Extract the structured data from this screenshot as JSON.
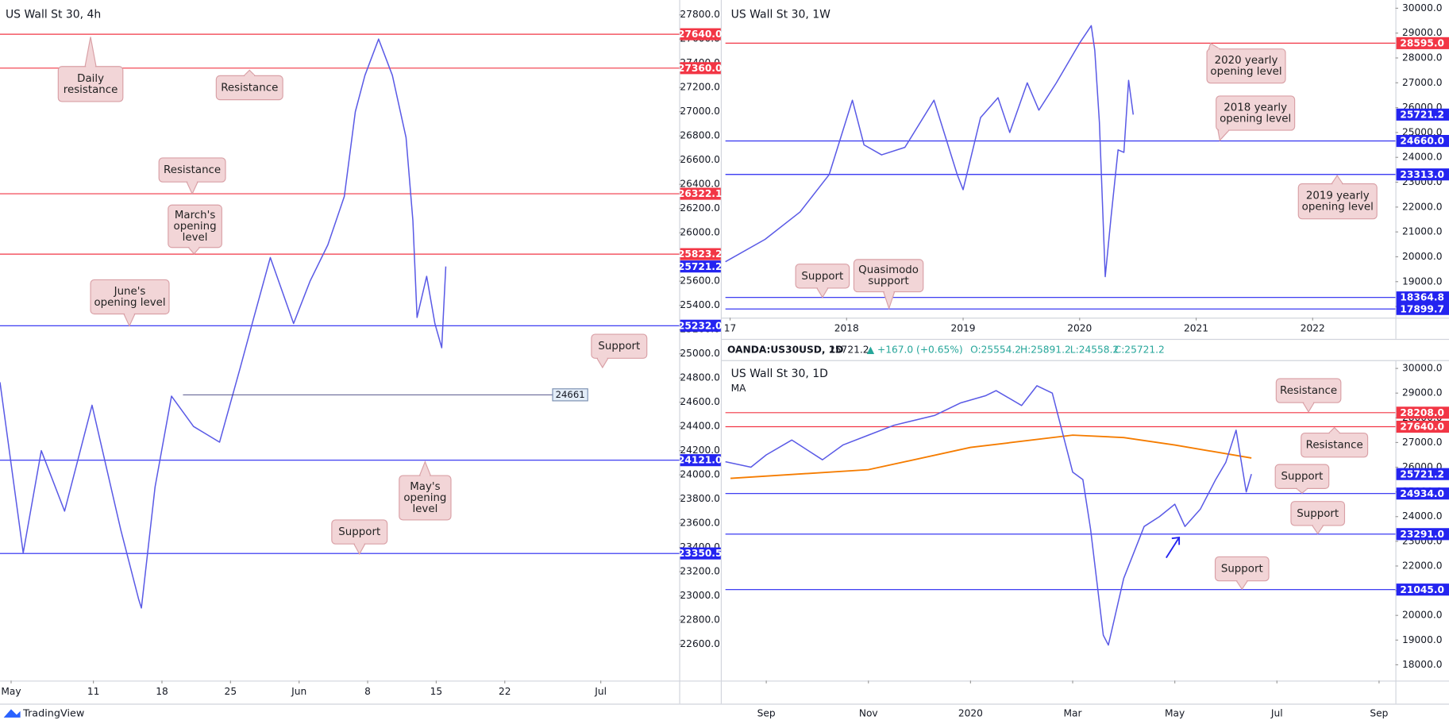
{
  "brand": "TradingView",
  "chart_data": [
    {
      "type": "line",
      "title": "US Wall St 30, 4h",
      "color": "#5a5ae6",
      "x": [
        -0.81,
        0.88,
        2.2,
        3.9,
        5.9,
        8.0,
        9.3,
        9.5,
        10.5,
        11.7,
        13.3,
        15.2,
        16.7,
        17.7,
        18.9,
        20.6,
        21.8,
        23.1,
        24.3,
        25.1,
        25.8,
        26.8,
        27.8,
        28.8,
        29.3,
        29.6,
        30.3,
        30.9,
        31.4,
        31.7
      ],
      "values": [
        24765,
        23355,
        24200,
        23700,
        24575,
        23545,
        22973,
        22900,
        23900,
        24650,
        24400,
        24270,
        24880,
        25300,
        25795,
        25250,
        25600,
        25900,
        26300,
        27000,
        27300,
        27600,
        27300,
        26786,
        26100,
        25300,
        25640,
        25250,
        25050,
        25721.2
      ],
      "xlim": [
        -0.81,
        48.72
      ],
      "xticks": [
        {
          "value": 0,
          "label": "May"
        },
        {
          "value": 6,
          "label": "11"
        },
        {
          "value": 11,
          "label": "18"
        },
        {
          "value": 16,
          "label": "25"
        },
        {
          "value": 21,
          "label": "Jun"
        },
        {
          "value": 26,
          "label": "8"
        },
        {
          "value": 31,
          "label": "15"
        },
        {
          "value": 36,
          "label": "22"
        },
        {
          "value": 43,
          "label": "Jul"
        }
      ],
      "ylim": [
        22300,
        27900
      ],
      "yticks": [
        {
          "value": 27800,
          "label": "27800.0"
        },
        {
          "value": 27600,
          "label": "27600.0"
        },
        {
          "value": 27400,
          "label": "27400.0"
        },
        {
          "value": 27200,
          "label": "27200.0"
        },
        {
          "value": 27000,
          "label": "27000.0"
        },
        {
          "value": 26800,
          "label": "26800.0"
        },
        {
          "value": 26600,
          "label": "26600.0"
        },
        {
          "value": 26400,
          "label": "26400.0"
        },
        {
          "value": 26200,
          "label": "26200.0"
        },
        {
          "value": 26000,
          "label": "26000.0"
        },
        {
          "value": 25800,
          "label": "25800.0"
        },
        {
          "value": 25600,
          "label": "25600.0"
        },
        {
          "value": 25400,
          "label": "25400.0"
        },
        {
          "value": 25200,
          "label": "25200.0"
        },
        {
          "value": 25000,
          "label": "25000.0"
        },
        {
          "value": 24800,
          "label": "24800.0"
        },
        {
          "value": 24600,
          "label": "24600.0"
        },
        {
          "value": 24400,
          "label": "24400.0"
        },
        {
          "value": 24200,
          "label": "24200.0"
        },
        {
          "value": 24000,
          "label": "24000.0"
        },
        {
          "value": 23800,
          "label": "23800.0"
        },
        {
          "value": 23600,
          "label": "23600.0"
        },
        {
          "value": 23400,
          "label": "23400.0"
        },
        {
          "value": 23200,
          "label": "23200.0"
        },
        {
          "value": 23000,
          "label": "23000.0"
        },
        {
          "value": 22800,
          "label": "22800.0"
        },
        {
          "value": 22600,
          "label": "22600.0"
        }
      ],
      "levels": [
        {
          "value": 27640,
          "label": "27640.0",
          "color": "#f23645"
        },
        {
          "value": 27360,
          "label": "27360.0",
          "color": "#f23645"
        },
        {
          "value": 26322.1,
          "color": "#f23645"
        },
        {
          "value": 25823.2,
          "color": "#f23645"
        },
        {
          "value": 25721.2,
          "color": "#2424f0",
          "line": false
        },
        {
          "value": 25232,
          "label": "25232.0",
          "color": "#2424f0"
        },
        {
          "value": 24121,
          "label": "24121.0",
          "color": "#2424f0"
        },
        {
          "value": 23350.5,
          "color": "#2424f0"
        }
      ],
      "marker": 24661,
      "annotations": [
        {
          "lines": [
            "Daily",
            "resistance"
          ]
        },
        {
          "lines": [
            "Resistance"
          ]
        },
        {
          "lines": [
            "Resistance"
          ]
        },
        {
          "lines": [
            "March's",
            "opening",
            "level"
          ]
        },
        {
          "lines": [
            "June's",
            "opening level"
          ]
        },
        {
          "lines": [
            "Support"
          ]
        },
        {
          "lines": [
            "May's",
            "opening",
            "level"
          ]
        },
        {
          "lines": [
            "Support"
          ]
        }
      ]
    },
    {
      "type": "line",
      "title": "US Wall St 30, 1W",
      "color": "#5a5ae6",
      "x": [
        2016.96,
        2017.3,
        2017.6,
        2017.85,
        2018.05,
        2018.15,
        2018.3,
        2018.5,
        2018.75,
        2018.95,
        2019.0,
        2019.15,
        2019.3,
        2019.4,
        2019.55,
        2019.65,
        2019.8,
        2020.0,
        2020.1,
        2020.13,
        2020.17,
        2020.22,
        2020.27,
        2020.33,
        2020.38,
        2020.42,
        2020.46
      ],
      "values": [
        19800,
        20700,
        21800,
        23300,
        26300,
        24500,
        24100,
        24400,
        26300,
        23300,
        22700,
        25600,
        26400,
        25000,
        27000,
        25900,
        27000,
        28600,
        29300,
        28300,
        25400,
        19200,
        21600,
        24300,
        24200,
        27100,
        25721.2
      ],
      "xlim": [
        2016.96,
        2022.71
      ],
      "xticks": [
        {
          "value": 2017,
          "label": "17"
        },
        2018,
        2019,
        2020,
        2021,
        2022
      ],
      "ylim": [
        17550,
        30220
      ],
      "yticks": [
        {
          "value": 30000,
          "label": "30000.0"
        },
        {
          "value": 29000,
          "label": "29000.0"
        },
        {
          "value": 28000,
          "label": "28000.0"
        },
        {
          "value": 27000,
          "label": "27000.0"
        },
        {
          "value": 26000,
          "label": "26000.0"
        },
        {
          "value": 25000,
          "label": "25000.0"
        },
        {
          "value": 24000,
          "label": "24000.0"
        },
        {
          "value": 23000,
          "label": "23000.0"
        },
        {
          "value": 22000,
          "label": "22000.0"
        },
        {
          "value": 21000,
          "label": "21000.0"
        },
        {
          "value": 20000,
          "label": "20000.0"
        },
        {
          "value": 19000,
          "label": "19000.0"
        },
        {
          "value": 18000,
          "label": "18000.0"
        }
      ],
      "levels": [
        {
          "value": 28595,
          "label": "28595.0",
          "color": "#f23645"
        },
        {
          "value": 25721.2,
          "color": "#2424f0",
          "line": false
        },
        {
          "value": 24660,
          "label": "24660.0",
          "color": "#2424f0"
        },
        {
          "value": 23313,
          "label": "23313.0",
          "color": "#2424f0"
        },
        {
          "value": 18364.8,
          "color": "#2424f0"
        },
        {
          "value": 17899.7,
          "color": "#2424f0"
        }
      ],
      "annotations": [
        {
          "lines": [
            "2020 yearly",
            "opening level"
          ]
        },
        {
          "lines": [
            "2018 yearly",
            "opening level"
          ]
        },
        {
          "lines": [
            "2019 yearly",
            "opening level"
          ]
        },
        {
          "lines": [
            "Support"
          ]
        },
        {
          "lines": [
            "Quasimodo",
            "support"
          ]
        }
      ]
    },
    {
      "type": "line",
      "title": "US Wall St 30, 1D",
      "subtitle": "MA",
      "color": "#5a5ae6",
      "header": {
        "symbol": "OANDA:US30USD, 1D",
        "last": "25721.2",
        "change": "▲ +167.0 (+0.65%)",
        "open": "O:25554.2",
        "high": "H:25891.2",
        "low": "L:24558.2",
        "close": "C:25721.2"
      },
      "x": [
        -0.8,
        -0.3,
        0,
        0.5,
        1.1,
        1.5,
        2,
        2.5,
        3.3,
        3.8,
        4.3,
        4.5,
        5,
        5.3,
        5.6,
        6,
        6.2,
        6.35,
        6.6,
        6.7,
        7,
        7.4,
        7.7,
        8,
        8.2,
        8.5,
        8.8,
        9,
        9.2,
        9.4,
        9.5
      ],
      "values": [
        26220,
        26000,
        26500,
        27100,
        26300,
        26900,
        27300,
        27700,
        28100,
        28600,
        28900,
        29100,
        28500,
        29300,
        29000,
        25800,
        25500,
        23500,
        19200,
        18800,
        21500,
        23600,
        24000,
        24500,
        23600,
        24300,
        25500,
        26200,
        27500,
        25000,
        25721.2
      ],
      "ma": {
        "color": "#f57c00",
        "x": [
          -0.7,
          2,
          4,
          6,
          7,
          8,
          9.5
        ],
        "values": [
          25550,
          25900,
          26800,
          27300,
          27200,
          26900,
          26370
        ]
      },
      "xlim": [
        -0.8,
        12.32
      ],
      "xticks": [
        {
          "value": 0,
          "label": "Sep"
        },
        {
          "value": 2,
          "label": "Nov"
        },
        {
          "value": 4,
          "label": "2020"
        },
        {
          "value": 6,
          "label": "Mar"
        },
        {
          "value": 8,
          "label": "May"
        },
        {
          "value": 10,
          "label": "Jul"
        },
        {
          "value": 12,
          "label": "Sep"
        }
      ],
      "ylim": [
        17360,
        30260
      ],
      "yticks": [
        {
          "value": 30000,
          "label": "30000.0"
        },
        {
          "value": 29000,
          "label": "29000.0"
        },
        {
          "value": 28000,
          "label": "28000.0"
        },
        {
          "value": 27000,
          "label": "27000.0"
        },
        {
          "value": 26000,
          "label": "26000.0"
        },
        {
          "value": 25000,
          "label": "25000.0"
        },
        {
          "value": 24000,
          "label": "24000.0"
        },
        {
          "value": 23000,
          "label": "23000.0"
        },
        {
          "value": 22000,
          "label": "22000.0"
        },
        {
          "value": 21000,
          "label": "21000.0"
        },
        {
          "value": 20000,
          "label": "20000.0"
        },
        {
          "value": 19000,
          "label": "19000.0"
        },
        {
          "value": 18000,
          "label": "18000.0"
        }
      ],
      "levels": [
        {
          "value": 28208,
          "label": "28208.0",
          "color": "#f23645"
        },
        {
          "value": 27640,
          "label": "27640.0",
          "color": "#f23645"
        },
        {
          "value": 25721.2,
          "color": "#2424f0",
          "line": false
        },
        {
          "value": 24934,
          "label": "24934.0",
          "color": "#2424f0"
        },
        {
          "value": 23291,
          "label": "23291.0",
          "color": "#2424f0"
        },
        {
          "value": 21045,
          "label": "21045.0",
          "color": "#2424f0"
        }
      ],
      "annotations": [
        {
          "lines": [
            "Resistance"
          ]
        },
        {
          "lines": [
            "Resistance"
          ]
        },
        {
          "lines": [
            "Support"
          ]
        },
        {
          "lines": [
            "Support"
          ]
        },
        {
          "lines": [
            "Support"
          ]
        }
      ]
    }
  ]
}
